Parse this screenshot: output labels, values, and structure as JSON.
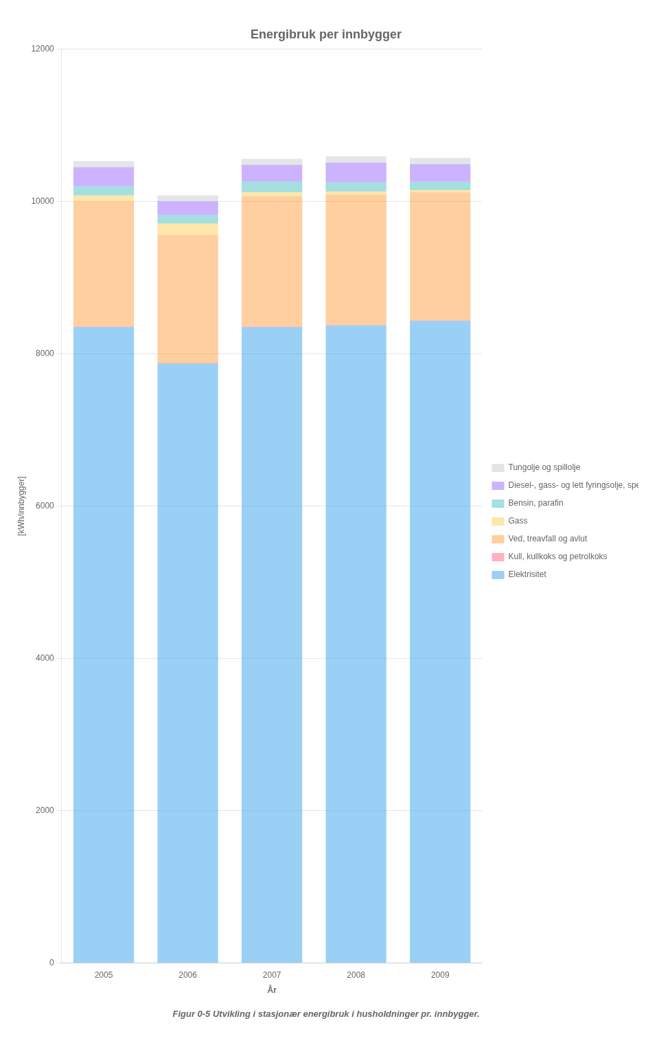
{
  "chart_data": {
    "type": "bar",
    "stacked": true,
    "title": "Energibruk per innbygger",
    "subtitle": "Figur 0-5 Utvikling i stasjonær energibruk i husholdninger pr. innbygger.",
    "x_label": "År",
    "y_label": "[kWh/innbygger]",
    "categories": [
      "2005",
      "2006",
      "2007",
      "2008",
      "2009"
    ],
    "series": [
      {
        "name": "Elektrisitet",
        "values": [
          8350,
          7870,
          8350,
          8370,
          8430
        ]
      },
      {
        "name": "Kull, kullkoks og petrolkoks",
        "values": [
          10,
          10,
          10,
          10,
          10
        ]
      },
      {
        "name": "Ved, treavfall og avlut",
        "values": [
          1640,
          1680,
          1710,
          1710,
          1680
        ]
      },
      {
        "name": "Gass",
        "values": [
          80,
          150,
          50,
          40,
          30
        ]
      },
      {
        "name": "Bensin, parafin",
        "values": [
          120,
          110,
          140,
          120,
          110
        ]
      },
      {
        "name": "Diesel-, gass- og lett fyringsolje, spesialdestillat",
        "values": [
          250,
          180,
          220,
          260,
          230
        ]
      },
      {
        "name": "Tungolje og spillolje",
        "values": [
          80,
          80,
          80,
          80,
          80
        ]
      }
    ],
    "ylim": [
      0,
      12000
    ],
    "yticks": [
      0,
      2000,
      4000,
      6000,
      8000,
      10000,
      12000
    ],
    "grid": true,
    "legend": "right"
  }
}
